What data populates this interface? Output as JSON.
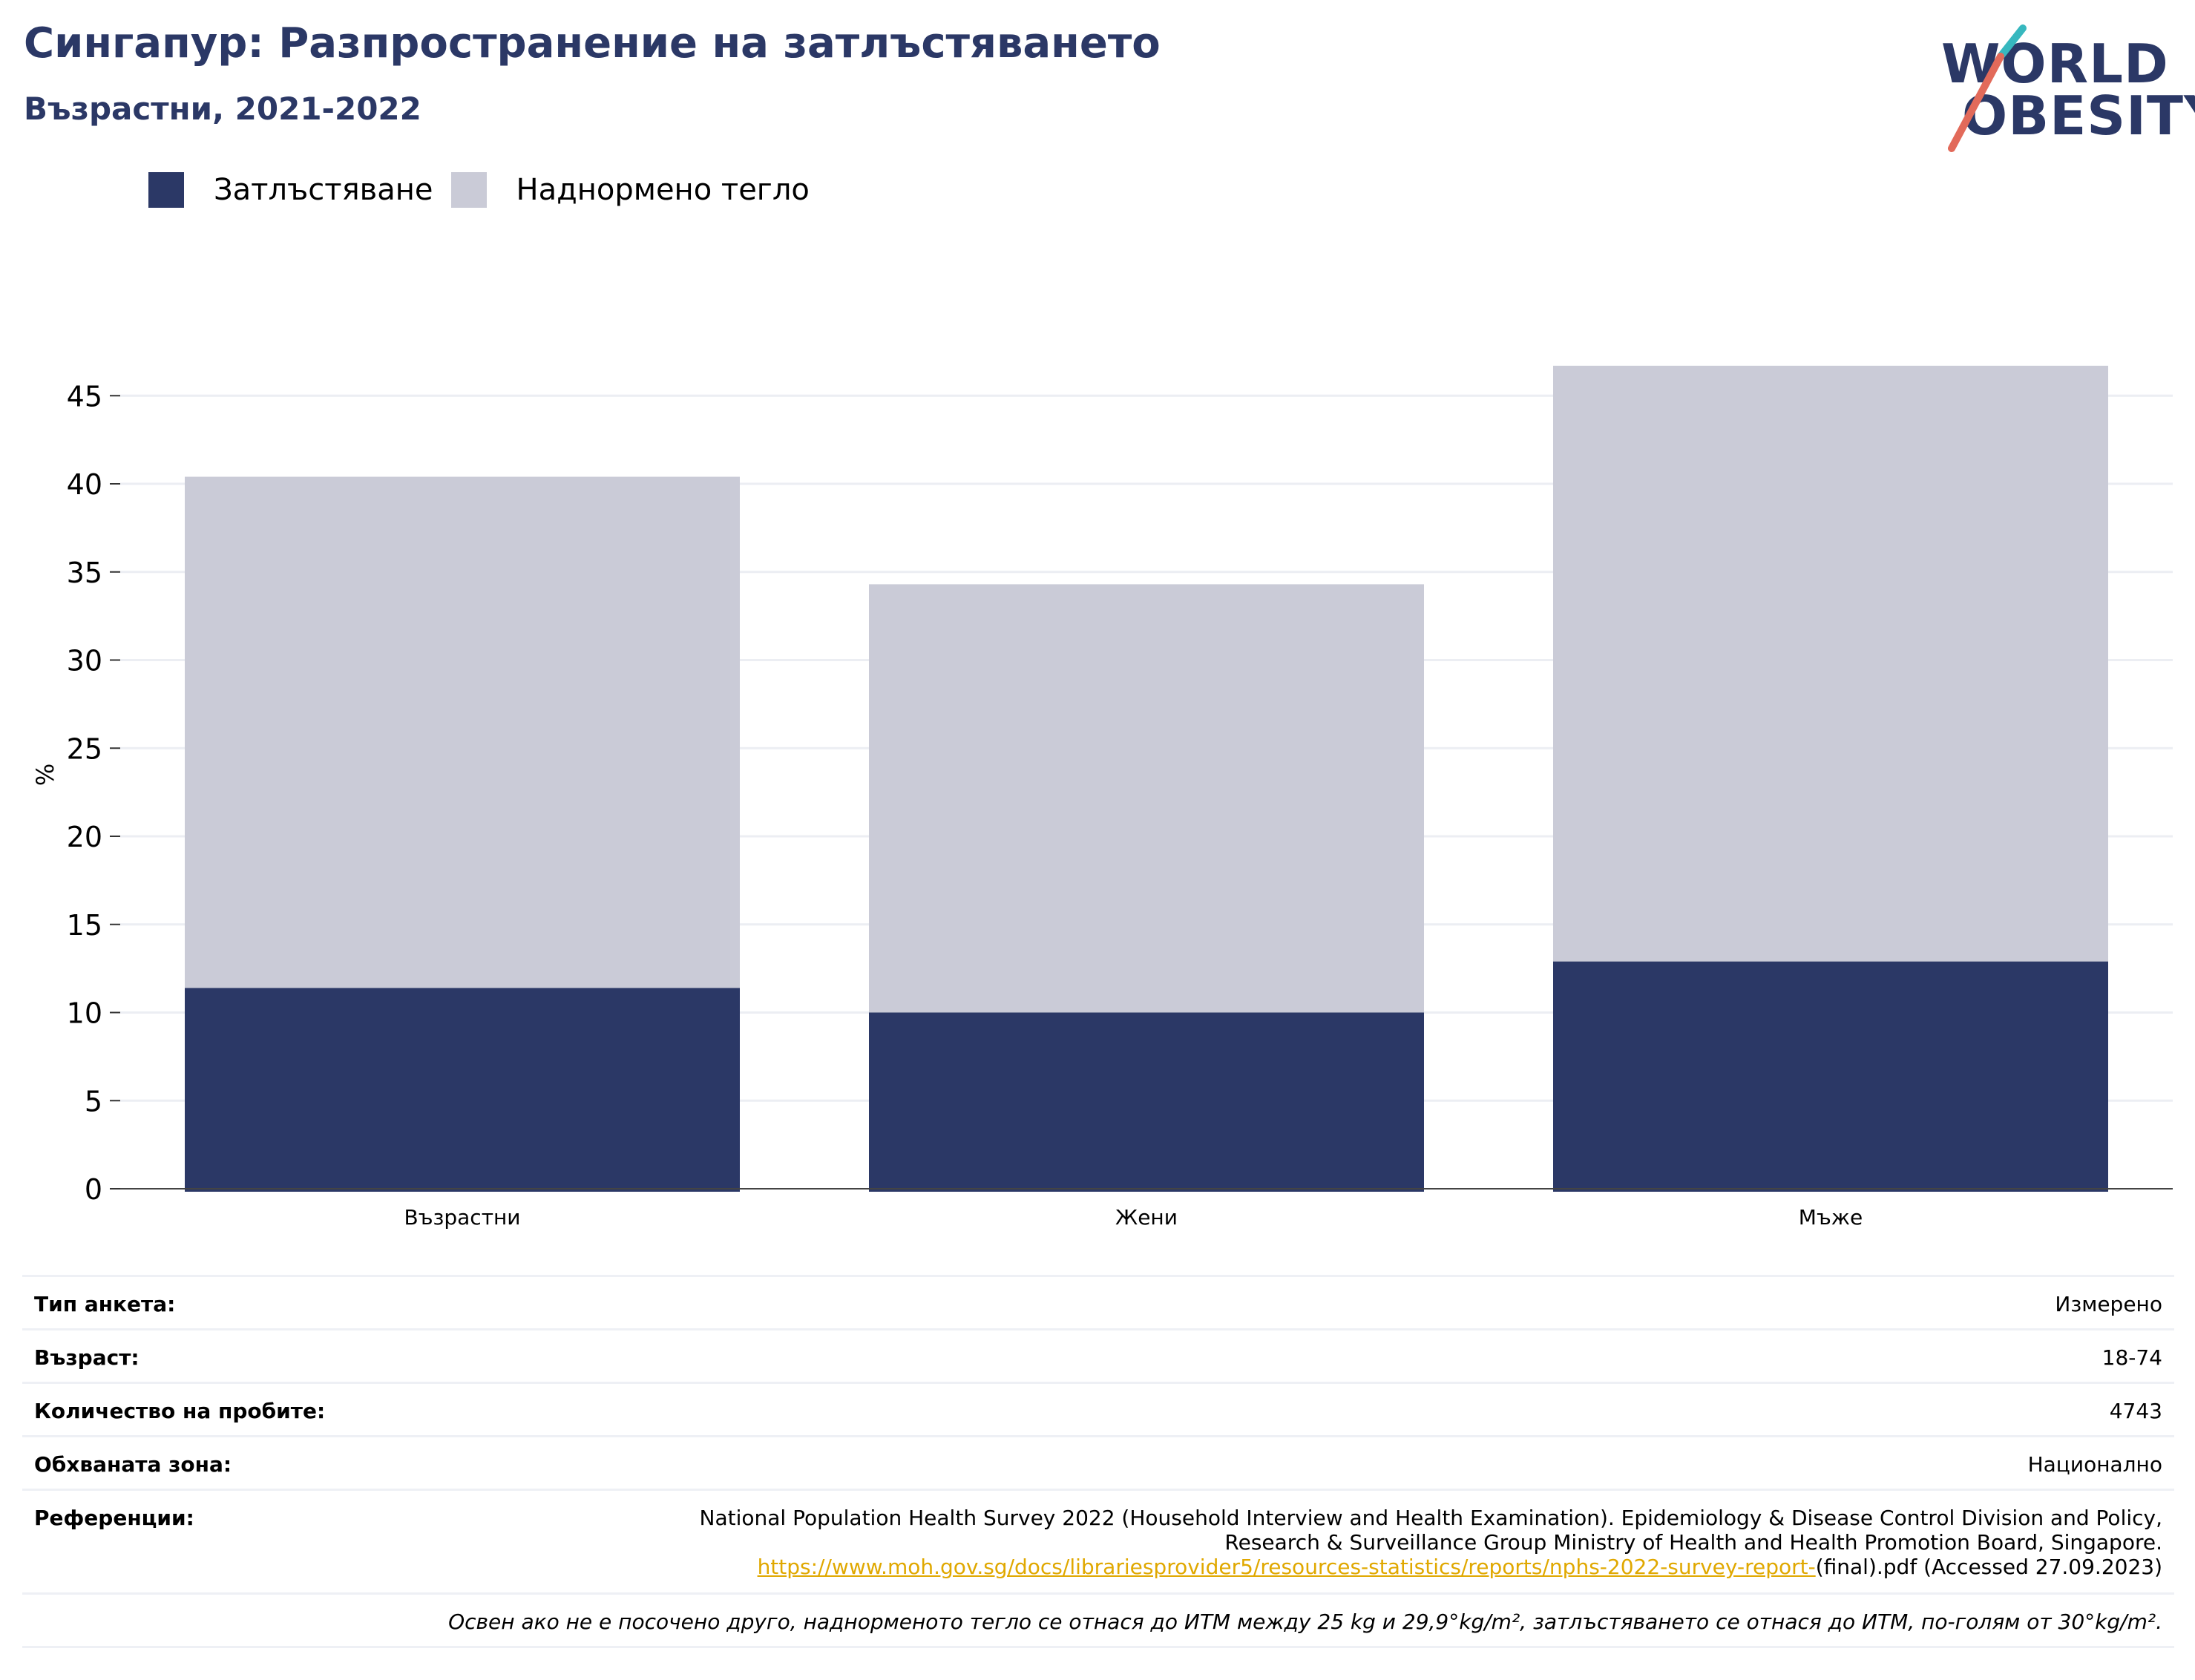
{
  "header": {
    "title": "Сингапур: Разпространение на затлъстяването",
    "subtitle": "Възрастни, 2021-2022"
  },
  "logo": {
    "line1": "WORLD",
    "line2": "OBESITY",
    "icon": "world-obesity-logo"
  },
  "colors": {
    "obesity": "#2b3866",
    "overweight": "#cacbd7",
    "accent": "#e0a800",
    "logo_teal": "#37b8bf",
    "logo_red": "#e26a5a"
  },
  "chart_data": {
    "type": "bar",
    "stacked": true,
    "categories": [
      "Възрастни",
      "Жени",
      "Мъже"
    ],
    "series": [
      {
        "name": "Затлъстяване",
        "values": [
          11.4,
          10.0,
          12.9
        ]
      },
      {
        "name": "Наднормено тегло",
        "values": [
          29.0,
          24.3,
          33.8
        ]
      }
    ],
    "ylabel": "%",
    "ylim": [
      0,
      47
    ],
    "yticks": [
      0,
      5,
      10,
      15,
      20,
      25,
      30,
      35,
      40,
      45
    ],
    "grid": true,
    "legend": "top-left"
  },
  "info": {
    "survey_type_label": "Тип анкета:",
    "survey_type": "Измерено",
    "age_label": "Възраст:",
    "age": "18-74",
    "sample_label": "Количество на пробите:",
    "sample": "4743",
    "area_label": "Обхваната зона:",
    "area": "Национално",
    "references_label": "Референции:",
    "references_line1": "National Population Health Survey 2022 (Household Interview and Health Examination). Epidemiology & Disease Control Division and Policy,",
    "references_line2": "Research & Surveillance Group Ministry of Health and Health Promotion Board, Singapore.",
    "references_link": "https://www.moh.gov.sg/docs/librariesprovider5/resources-statistics/reports/nphs-2022-survey-report-",
    "references_tail": "(final).pdf (Accessed 27.09.2023)",
    "note": "Освен ако не е посочено друго, наднорменото тегло се отнася до ИТМ между 25 kg и 29,9°kg/m², затлъстяването се отнася до ИТМ, по-голям от 30°kg/m²."
  }
}
